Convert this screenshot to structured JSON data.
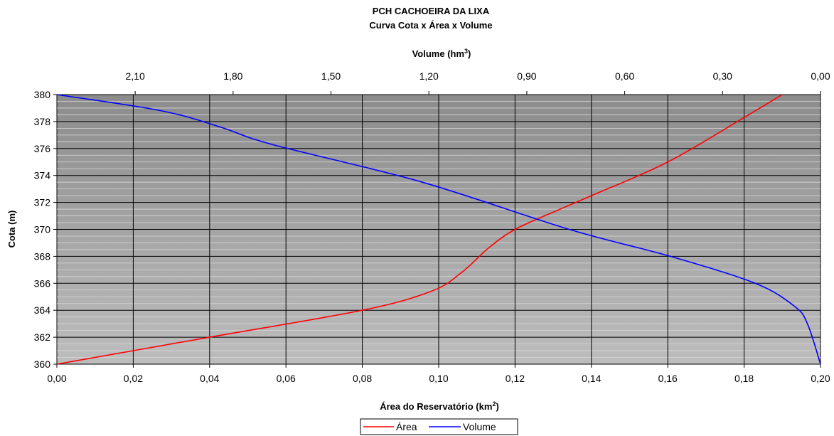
{
  "chart_data": {
    "type": "line",
    "title": "PCH CACHOEIRA DA LIXA",
    "subtitle": "Curva Cota x Área x Volume",
    "xlabel_bottom": "Área do Reservatório (km",
    "xlabel_bottom_sup": "2",
    "xlabel_bottom_tail": ")",
    "xlabel_top": "Volume (hm",
    "xlabel_top_sup": "3",
    "xlabel_top_tail": ")",
    "ylabel": "Cota (m)",
    "ylim": [
      360,
      380
    ],
    "xlim_bottom": [
      0.0,
      0.2
    ],
    "xlim_top": [
      2.34,
      0.0
    ],
    "yticks": [
      "360",
      "362",
      "364",
      "366",
      "368",
      "370",
      "372",
      "374",
      "376",
      "378",
      "380"
    ],
    "xticks_bottom": [
      "0,00",
      "0,02",
      "0,04",
      "0,06",
      "0,08",
      "0,10",
      "0,12",
      "0,14",
      "0,16",
      "0,18",
      "0,20"
    ],
    "xticks_top": [
      "2,10",
      "1,80",
      "1,50",
      "1,20",
      "0,90",
      "0,60",
      "0,30",
      "0,00"
    ],
    "series": [
      {
        "name": "Área",
        "color": "#ff0000",
        "axis": "bottom",
        "points": [
          [
            0.0,
            360
          ],
          [
            0.04,
            362
          ],
          [
            0.08,
            364
          ],
          [
            0.098,
            365.4
          ],
          [
            0.106,
            366.8
          ],
          [
            0.113,
            368.6
          ],
          [
            0.12,
            370
          ],
          [
            0.131,
            371.4
          ],
          [
            0.14,
            372.5
          ],
          [
            0.16,
            375
          ],
          [
            0.18,
            378.3
          ],
          [
            0.19,
            380
          ]
        ]
      },
      {
        "name": "Volume",
        "color": "#0000ff",
        "axis": "top",
        "points": [
          [
            2.34,
            380
          ],
          [
            2.02,
            378.8
          ],
          [
            1.84,
            377.6
          ],
          [
            1.68,
            376.3
          ],
          [
            1.22,
            373.5
          ],
          [
            0.77,
            370
          ],
          [
            0.46,
            368
          ],
          [
            0.2,
            366
          ],
          [
            0.08,
            364.3
          ],
          [
            0.04,
            363
          ],
          [
            0.0,
            360
          ]
        ]
      }
    ],
    "grid": true,
    "legend_position": "bottom-center"
  }
}
